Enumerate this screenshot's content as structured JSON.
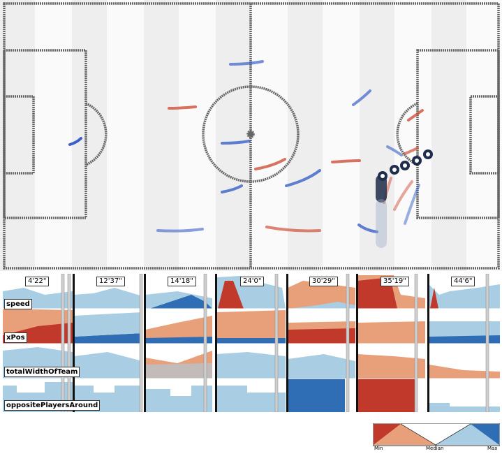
{
  "timeline": {
    "segments": [
      {
        "time": "4'22\""
      },
      {
        "time": "12'37\""
      },
      {
        "time": "14'18\""
      },
      {
        "time": "24'0\""
      },
      {
        "time": "30'29\""
      },
      {
        "time": "35'19\""
      },
      {
        "time": "44'6\""
      }
    ],
    "rows": [
      {
        "label": "speed"
      },
      {
        "label": "xPos"
      },
      {
        "label": "totalWidthOfTeam"
      },
      {
        "label": "oppositePlayersAround"
      }
    ]
  },
  "legend": {
    "min_label": "Min",
    "median_label": "Median",
    "max_label": "Max",
    "colors": {
      "min": "#c0392b",
      "low": "#e8a07a",
      "high": "#a9cde3",
      "max": "#2f6db5"
    }
  },
  "colors": {
    "red": "#c0392b",
    "salmon": "#e8a07a",
    "lightblue": "#a9cde3",
    "blue": "#2f6db5",
    "pitch_line": "#555555",
    "stripe": "#f0f0f0"
  }
}
